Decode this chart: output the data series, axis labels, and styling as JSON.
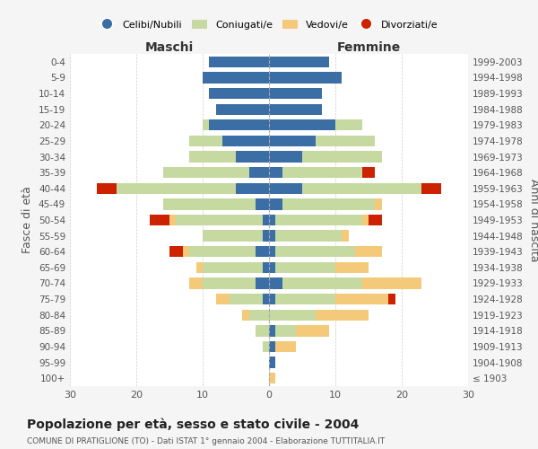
{
  "age_groups": [
    "100+",
    "95-99",
    "90-94",
    "85-89",
    "80-84",
    "75-79",
    "70-74",
    "65-69",
    "60-64",
    "55-59",
    "50-54",
    "45-49",
    "40-44",
    "35-39",
    "30-34",
    "25-29",
    "20-24",
    "15-19",
    "10-14",
    "5-9",
    "0-4"
  ],
  "birth_years": [
    "≤ 1903",
    "1904-1908",
    "1909-1913",
    "1914-1918",
    "1919-1923",
    "1924-1928",
    "1929-1933",
    "1934-1938",
    "1939-1943",
    "1944-1948",
    "1949-1953",
    "1954-1958",
    "1959-1963",
    "1964-1968",
    "1969-1973",
    "1974-1978",
    "1979-1983",
    "1984-1988",
    "1989-1993",
    "1994-1998",
    "1999-2003"
  ],
  "colors": {
    "celibi": "#3a6ea5",
    "coniugati": "#c5d9a0",
    "vedovi": "#f5c97a",
    "divorziati": "#cc2200"
  },
  "maschi": {
    "celibi": [
      0,
      0,
      0,
      0,
      0,
      1,
      2,
      1,
      2,
      1,
      1,
      2,
      5,
      3,
      5,
      7,
      9,
      8,
      9,
      10,
      9
    ],
    "coniugati": [
      0,
      0,
      1,
      2,
      3,
      5,
      8,
      9,
      10,
      9,
      13,
      14,
      18,
      13,
      7,
      5,
      1,
      0,
      0,
      0,
      0
    ],
    "vedovi": [
      0,
      0,
      0,
      0,
      1,
      2,
      2,
      1,
      1,
      0,
      1,
      0,
      0,
      0,
      0,
      0,
      0,
      0,
      0,
      0,
      0
    ],
    "divorziati": [
      0,
      0,
      0,
      0,
      0,
      0,
      0,
      0,
      2,
      0,
      3,
      0,
      3,
      0,
      0,
      0,
      0,
      0,
      0,
      0,
      0
    ]
  },
  "femmine": {
    "celibi": [
      0,
      1,
      1,
      1,
      0,
      1,
      2,
      1,
      1,
      1,
      1,
      2,
      5,
      2,
      5,
      7,
      10,
      8,
      8,
      11,
      9
    ],
    "coniugati": [
      0,
      0,
      0,
      3,
      7,
      9,
      12,
      9,
      12,
      10,
      13,
      14,
      18,
      12,
      12,
      9,
      4,
      0,
      0,
      0,
      0
    ],
    "vedovi": [
      1,
      0,
      3,
      5,
      8,
      8,
      9,
      5,
      4,
      1,
      1,
      1,
      0,
      0,
      0,
      0,
      0,
      0,
      0,
      0,
      0
    ],
    "divorziati": [
      0,
      0,
      0,
      0,
      0,
      1,
      0,
      0,
      0,
      0,
      2,
      0,
      3,
      2,
      0,
      0,
      0,
      0,
      0,
      0,
      0
    ]
  },
  "title": "Popolazione per età, sesso e stato civile - 2004",
  "subtitle": "COMUNE DI PRATIGLIONE (TO) - Dati ISTAT 1° gennaio 2004 - Elaborazione TUTTITALIA.IT",
  "ylabel_left": "Fasce di età",
  "ylabel_right": "Anni di nascita",
  "xlabel_maschi": "Maschi",
  "xlabel_femmine": "Femmine",
  "xlim": 30,
  "background_color": "#f5f5f5",
  "plot_bg": "#ffffff",
  "legend_labels": [
    "Celibi/Nubili",
    "Coniugati/e",
    "Vedovi/e",
    "Divorziati/e"
  ]
}
